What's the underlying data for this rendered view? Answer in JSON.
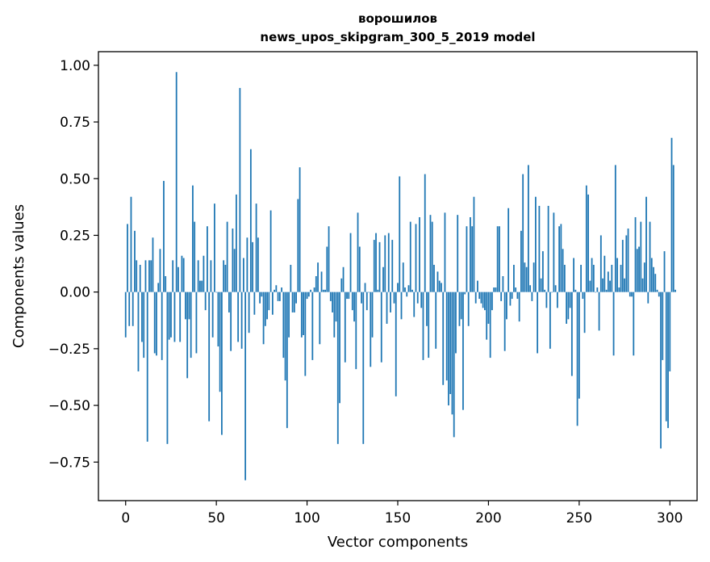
{
  "chart_data": {
    "type": "bar",
    "title_line1": "ворошилов",
    "title_line2": "news_upos_skipgram_300_5_2019 model",
    "xlabel": "Vector components",
    "ylabel": "Components values",
    "xlim": [
      -15,
      315
    ],
    "ylim": [
      -0.92,
      1.06
    ],
    "xticks": [
      0,
      50,
      100,
      150,
      200,
      250,
      300
    ],
    "yticks": [
      -0.75,
      -0.5,
      -0.25,
      0.0,
      0.25,
      0.5,
      0.75,
      1.0
    ],
    "ytick_labels": [
      "−0.75",
      "−0.50",
      "−0.25",
      "0.00",
      "0.25",
      "0.50",
      "0.75",
      "1.00"
    ],
    "bar_color": "#1f77b4",
    "grid": false,
    "values": [
      -0.2,
      0.3,
      -0.15,
      0.42,
      -0.15,
      0.27,
      0.14,
      -0.35,
      0.12,
      -0.22,
      -0.29,
      0.14,
      -0.66,
      0.14,
      0.14,
      0.24,
      -0.27,
      -0.28,
      0.04,
      0.19,
      -0.3,
      0.49,
      0.07,
      -0.67,
      -0.21,
      -0.2,
      0.14,
      -0.22,
      0.97,
      0.11,
      -0.22,
      0.16,
      0.15,
      -0.12,
      -0.38,
      -0.12,
      -0.29,
      0.47,
      0.31,
      -0.27,
      0.14,
      0.05,
      0.05,
      0.16,
      -0.08,
      0.29,
      -0.57,
      0.14,
      -0.2,
      0.39,
      0.0,
      -0.24,
      -0.44,
      -0.63,
      0.14,
      0.12,
      0.31,
      -0.09,
      -0.26,
      0.28,
      0.19,
      0.43,
      -0.22,
      0.9,
      -0.25,
      0.15,
      -0.83,
      0.24,
      -0.18,
      0.63,
      0.22,
      -0.1,
      0.39,
      0.24,
      -0.05,
      -0.02,
      -0.23,
      -0.15,
      -0.12,
      -0.08,
      0.36,
      -0.1,
      0.01,
      0.03,
      -0.04,
      -0.04,
      0.02,
      -0.29,
      -0.39,
      -0.6,
      -0.2,
      0.12,
      -0.09,
      -0.09,
      -0.05,
      0.41,
      0.55,
      -0.2,
      -0.19,
      -0.37,
      -0.03,
      -0.02,
      0.01,
      -0.3,
      0.02,
      0.07,
      0.13,
      -0.23,
      0.09,
      0.01,
      0.01,
      0.2,
      0.29,
      -0.04,
      -0.09,
      -0.2,
      -0.13,
      -0.67,
      -0.49,
      0.06,
      0.11,
      -0.31,
      -0.03,
      -0.03,
      0.26,
      -0.08,
      -0.13,
      -0.34,
      0.35,
      0.2,
      -0.05,
      -0.67,
      0.04,
      -0.08,
      0.0,
      -0.33,
      -0.2,
      0.23,
      0.26,
      0.01,
      0.22,
      -0.31,
      0.11,
      0.25,
      -0.14,
      0.26,
      -0.09,
      0.23,
      -0.05,
      -0.46,
      0.04,
      0.51,
      -0.12,
      0.13,
      0.02,
      -0.02,
      0.03,
      0.31,
      0.01,
      -0.11,
      0.3,
      -0.05,
      0.33,
      -0.07,
      -0.3,
      0.52,
      -0.15,
      -0.29,
      0.34,
      0.31,
      0.12,
      -0.25,
      0.09,
      0.05,
      0.04,
      -0.41,
      0.35,
      -0.39,
      -0.5,
      -0.45,
      -0.54,
      -0.64,
      -0.27,
      0.34,
      -0.15,
      -0.12,
      -0.52,
      -0.01,
      0.29,
      -0.15,
      0.33,
      0.29,
      0.42,
      -0.05,
      0.05,
      -0.03,
      -0.05,
      -0.07,
      -0.08,
      -0.21,
      -0.14,
      -0.29,
      -0.08,
      0.02,
      0.02,
      0.29,
      0.29,
      -0.04,
      0.07,
      -0.26,
      -0.12,
      0.37,
      -0.06,
      -0.03,
      0.12,
      0.02,
      -0.03,
      -0.13,
      0.27,
      0.52,
      0.13,
      0.11,
      0.56,
      0.03,
      -0.04,
      0.13,
      0.42,
      -0.27,
      0.38,
      0.06,
      0.18,
      0.01,
      -0.07,
      0.38,
      -0.25,
      0.0,
      0.35,
      0.03,
      -0.07,
      0.29,
      0.3,
      0.19,
      0.12,
      -0.14,
      -0.12,
      -0.07,
      -0.37,
      0.15,
      0.01,
      -0.59,
      -0.47,
      0.12,
      -0.03,
      -0.18,
      0.47,
      0.43,
      0.05,
      0.15,
      0.12,
      0.0,
      0.02,
      -0.17,
      0.25,
      0.06,
      0.16,
      0.01,
      0.09,
      0.05,
      0.12,
      -0.28,
      0.56,
      0.15,
      0.02,
      0.12,
      0.23,
      0.06,
      0.25,
      0.28,
      -0.02,
      -0.02,
      -0.28,
      0.33,
      0.19,
      0.2,
      0.31,
      0.06,
      0.13,
      0.42,
      -0.05,
      0.31,
      0.15,
      0.11,
      0.08,
      0.01,
      -0.02,
      -0.69,
      -0.3,
      0.18,
      -0.57,
      -0.6,
      -0.35,
      0.68,
      0.56,
      0.01
    ]
  }
}
